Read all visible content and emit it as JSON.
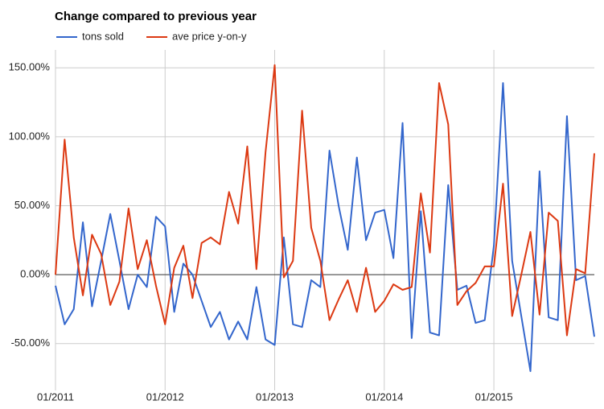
{
  "chart_data": {
    "type": "line",
    "title": "Change compared to previous year",
    "categories": [
      "01/2011",
      null,
      null,
      null,
      null,
      null,
      null,
      null,
      null,
      null,
      null,
      null,
      "01/2012",
      null,
      null,
      null,
      null,
      null,
      null,
      null,
      null,
      null,
      null,
      null,
      "01/2013",
      null,
      null,
      null,
      null,
      null,
      null,
      null,
      null,
      null,
      null,
      null,
      "01/2014",
      null,
      null,
      null,
      null,
      null,
      null,
      null,
      null,
      null,
      null,
      null,
      "01/2015",
      null,
      null,
      null,
      null,
      null,
      null,
      null,
      null,
      null,
      null,
      null
    ],
    "series": [
      {
        "name": "tons sold",
        "color": "#3366cc",
        "values": [
          -8,
          -36,
          -25,
          38,
          -23,
          10,
          44,
          10,
          -25,
          0,
          -9,
          42,
          35,
          -27,
          8,
          0,
          -19,
          -38,
          -27,
          -47,
          -34,
          -47,
          -9,
          -47,
          -51,
          27,
          -36,
          -38,
          -4,
          -9,
          90,
          50,
          18,
          85,
          25,
          45,
          47,
          12,
          110,
          -46,
          46,
          -42,
          -44,
          65,
          -11,
          -8,
          -35,
          -33,
          21,
          139,
          10,
          -30,
          -70,
          75,
          -31,
          -33,
          115,
          -4,
          -1,
          -45
        ]
      },
      {
        "name": "ave price y-on-y",
        "color": "#dc3912",
        "values": [
          0,
          98,
          27,
          -15,
          29,
          15,
          -22,
          -5,
          48,
          4,
          25,
          -8,
          -36,
          5,
          21,
          -17,
          23,
          27,
          22,
          60,
          37,
          93,
          4,
          89,
          152,
          -2,
          10,
          119,
          34,
          10,
          -33,
          -18,
          -4,
          -27,
          5,
          -27,
          -19,
          -7,
          -11,
          -9,
          59,
          16,
          139,
          109,
          -22,
          -12,
          -6,
          6,
          6,
          66,
          -30,
          0,
          31,
          -29,
          45,
          39,
          -44,
          4,
          1,
          88
        ]
      }
    ],
    "ylim": [
      -84,
      163
    ],
    "yticks": [
      {
        "value": -50,
        "label": "-50.00%"
      },
      {
        "value": 0,
        "label": "0.00%"
      },
      {
        "value": 50,
        "label": "50.00%"
      },
      {
        "value": 100,
        "label": "100.00%"
      },
      {
        "value": 150,
        "label": "150.00%"
      }
    ],
    "grid": true,
    "legend": "top"
  }
}
